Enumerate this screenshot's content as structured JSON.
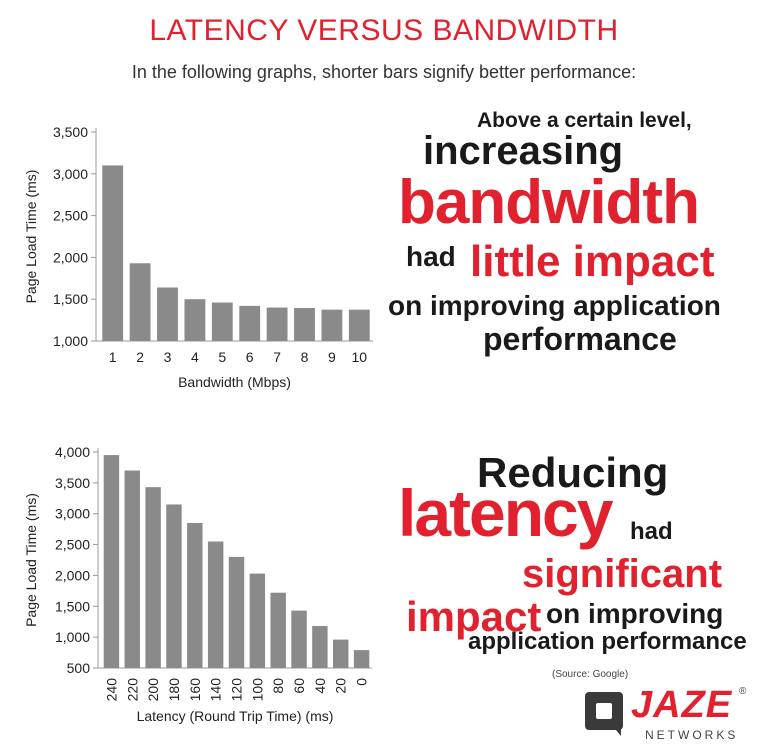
{
  "header": {
    "title": "LATENCY VERSUS BANDWIDTH",
    "subtitle": "In the following graphs, shorter bars signify better performance:"
  },
  "chart_data": [
    {
      "type": "bar",
      "categories": [
        "1",
        "2",
        "3",
        "4",
        "5",
        "6",
        "7",
        "8",
        "9",
        "10"
      ],
      "values": [
        3100,
        1930,
        1640,
        1500,
        1460,
        1420,
        1400,
        1395,
        1375,
        1375
      ],
      "xlabel": "Bandwidth (Mbps)",
      "ylabel": "Page Load Time (ms)",
      "ylim": [
        1000,
        3500
      ],
      "yticks": [
        "1,000",
        "1,500",
        "2,000",
        "2,500",
        "3,000",
        "3,500"
      ],
      "bar_color": "#8a8a8a",
      "grid": false
    },
    {
      "type": "bar",
      "categories": [
        "240",
        "220",
        "200",
        "180",
        "160",
        "140",
        "120",
        "100",
        "80",
        "60",
        "40",
        "20",
        "0"
      ],
      "values": [
        3950,
        3700,
        3430,
        3150,
        2850,
        2550,
        2300,
        2030,
        1720,
        1430,
        1180,
        960,
        790
      ],
      "xlabel": "Latency (Round Trip Time) (ms)",
      "ylabel": "Page Load Time (ms)",
      "ylim": [
        500,
        4000
      ],
      "yticks": [
        "500",
        "1,000",
        "1,500",
        "2,000",
        "2,500",
        "3,000",
        "3,500",
        "4,000"
      ],
      "bar_color": "#8a8a8a",
      "grid": false
    }
  ],
  "callout_bandwidth": {
    "line1": "Above a certain level,",
    "line2": "increasing",
    "line3": "bandwidth",
    "line4a": "had",
    "line4b": "little impact",
    "line5": "on improving application",
    "line6": "performance"
  },
  "callout_latency": {
    "line1": "Reducing",
    "line2a": "latency",
    "line2b": "had",
    "line3": "significant",
    "line4a": "impact",
    "line4b": "on improving",
    "line5": "application performance"
  },
  "source": "(Source: Google)",
  "logo": {
    "word": "JAZE",
    "sub": "NETWORKS",
    "reg": "®"
  },
  "colors": {
    "accent": "#e2212f",
    "text": "#1a1a1a",
    "bar": "#8a8a8a"
  }
}
